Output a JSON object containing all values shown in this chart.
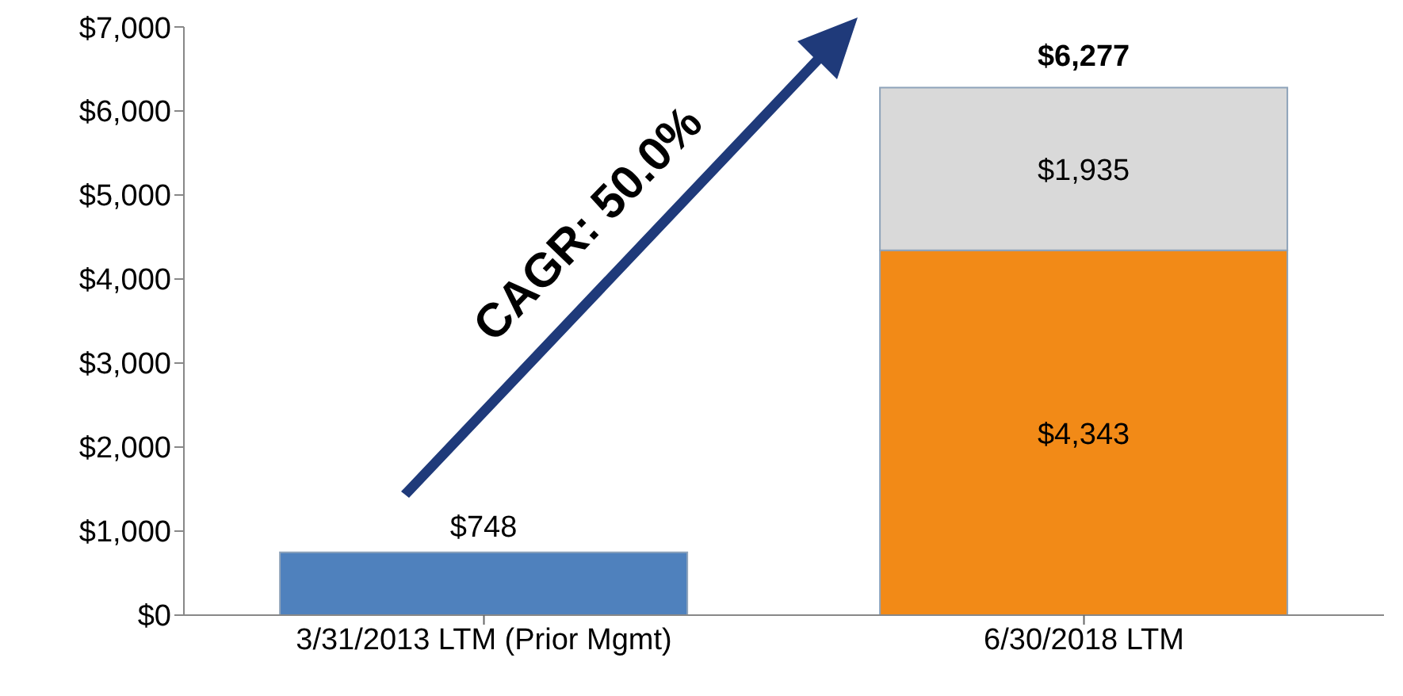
{
  "chart_data": {
    "type": "bar",
    "stacked": true,
    "categories": [
      "3/31/2013 LTM (Prior Mgmt)",
      "6/30/2018 LTM"
    ],
    "series": [
      {
        "color": "#4f81bd",
        "values": [
          748,
          null
        ],
        "value_labels": [
          "$748",
          null
        ]
      },
      {
        "color": "#f28a17",
        "values": [
          null,
          4343
        ],
        "value_labels": [
          null,
          "$4,343"
        ]
      },
      {
        "color": "#d9d9d9",
        "values": [
          null,
          1935
        ],
        "value_labels": [
          null,
          "$1,935"
        ]
      }
    ],
    "totals": [
      null,
      "$6,277"
    ],
    "ylim": [
      0,
      7000
    ],
    "yticks": [
      {
        "value": 0,
        "label": "$0"
      },
      {
        "value": 1000,
        "label": "$1,000"
      },
      {
        "value": 2000,
        "label": "$2,000"
      },
      {
        "value": 3000,
        "label": "$3,000"
      },
      {
        "value": 4000,
        "label": "$4,000"
      },
      {
        "value": 5000,
        "label": "$5,000"
      },
      {
        "value": 6000,
        "label": "$6,000"
      },
      {
        "value": 7000,
        "label": "$7,000"
      }
    ],
    "annotations": [
      "CAGR: 50.0%"
    ],
    "grid": false,
    "legend": false
  }
}
